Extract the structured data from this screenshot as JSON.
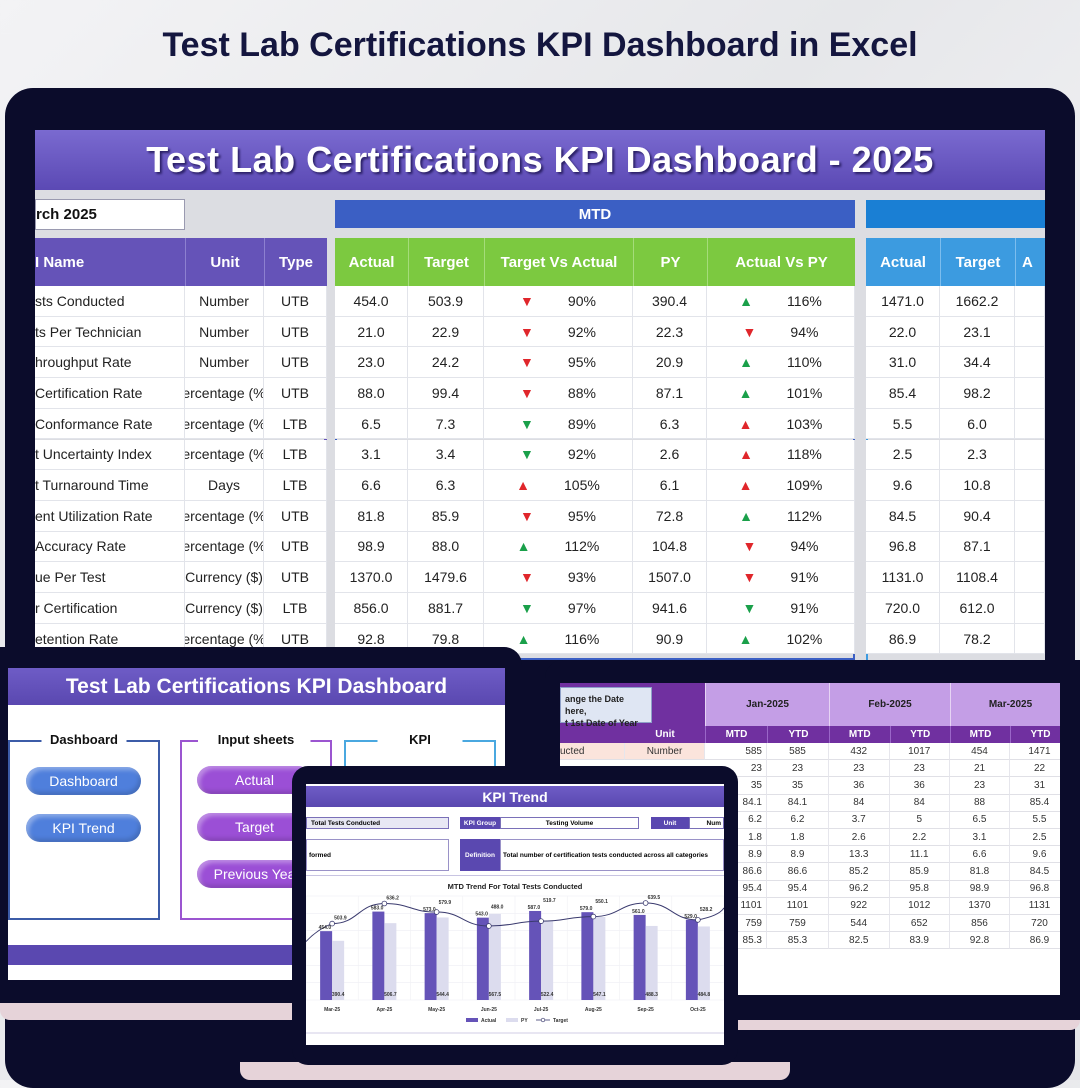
{
  "page_title": "Test Lab Certifications KPI Dashboard in Excel",
  "main": {
    "title": "Test Lab Certifications KPI Dashboard - 2025",
    "month_selector": "rch 2025",
    "mtd_label": "MTD",
    "ytd_label": "",
    "headers": {
      "name": "I Name",
      "unit": "Unit",
      "type": "Type",
      "actual": "Actual",
      "target": "Target",
      "tva": "Target Vs Actual",
      "py": "PY",
      "avpy": "Actual Vs PY",
      "ytd_actual": "Actual",
      "ytd_target": "Target",
      "ytd_cut": "A"
    },
    "colors": {
      "purple": "#6553b8",
      "mtd_band": "#3b5fc4",
      "mtd_head": "#7cc940",
      "ytd_band": "#1a7fd4",
      "ytd_head": "#3c9be0",
      "up": "#1aa04a",
      "down": "#e0262b"
    },
    "rows": [
      {
        "name": "sts Conducted",
        "unit": "Number",
        "type": "UTB",
        "actual": "454.0",
        "target": "503.9",
        "tva_dir": "down",
        "tva_color": "red",
        "tva": "90%",
        "py": "390.4",
        "avpy_dir": "up",
        "avpy_color": "green",
        "avpy": "116%",
        "ytd_actual": "1471.0",
        "ytd_target": "1662.2"
      },
      {
        "name": "ts Per Technician",
        "unit": "Number",
        "type": "UTB",
        "actual": "21.0",
        "target": "22.9",
        "tva_dir": "down",
        "tva_color": "red",
        "tva": "92%",
        "py": "22.3",
        "avpy_dir": "down",
        "avpy_color": "red",
        "avpy": "94%",
        "ytd_actual": "22.0",
        "ytd_target": "23.1"
      },
      {
        "name": "hroughput Rate",
        "unit": "Number",
        "type": "UTB",
        "actual": "23.0",
        "target": "24.2",
        "tva_dir": "down",
        "tva_color": "red",
        "tva": "95%",
        "py": "20.9",
        "avpy_dir": "up",
        "avpy_color": "green",
        "avpy": "110%",
        "ytd_actual": "31.0",
        "ytd_target": "34.4"
      },
      {
        "name": "Certification Rate",
        "unit": "ercentage (%",
        "type": "UTB",
        "actual": "88.0",
        "target": "99.4",
        "tva_dir": "down",
        "tva_color": "red",
        "tva": "88%",
        "py": "87.1",
        "avpy_dir": "up",
        "avpy_color": "green",
        "avpy": "101%",
        "ytd_actual": "85.4",
        "ytd_target": "98.2"
      },
      {
        "name": "Conformance Rate",
        "unit": "ercentage (%",
        "type": "LTB",
        "actual": "6.5",
        "target": "7.3",
        "tva_dir": "down",
        "tva_color": "green",
        "tva": "89%",
        "py": "6.3",
        "avpy_dir": "up",
        "avpy_color": "red",
        "avpy": "103%",
        "ytd_actual": "5.5",
        "ytd_target": "6.0"
      },
      {
        "name": "t Uncertainty Index",
        "unit": "ercentage (%",
        "type": "LTB",
        "actual": "3.1",
        "target": "3.4",
        "tva_dir": "down",
        "tva_color": "green",
        "tva": "92%",
        "py": "2.6",
        "avpy_dir": "up",
        "avpy_color": "red",
        "avpy": "118%",
        "ytd_actual": "2.5",
        "ytd_target": "2.3"
      },
      {
        "name": "t Turnaround Time",
        "unit": "Days",
        "type": "LTB",
        "actual": "6.6",
        "target": "6.3",
        "tva_dir": "up",
        "tva_color": "red",
        "tva": "105%",
        "py": "6.1",
        "avpy_dir": "up",
        "avpy_color": "red",
        "avpy": "109%",
        "ytd_actual": "9.6",
        "ytd_target": "10.8"
      },
      {
        "name": "ent Utilization Rate",
        "unit": "ercentage (%",
        "type": "UTB",
        "actual": "81.8",
        "target": "85.9",
        "tva_dir": "down",
        "tva_color": "red",
        "tva": "95%",
        "py": "72.8",
        "avpy_dir": "up",
        "avpy_color": "green",
        "avpy": "112%",
        "ytd_actual": "84.5",
        "ytd_target": "90.4"
      },
      {
        "name": "Accuracy Rate",
        "unit": "ercentage (%",
        "type": "UTB",
        "actual": "98.9",
        "target": "88.0",
        "tva_dir": "up",
        "tva_color": "green",
        "tva": "112%",
        "py": "104.8",
        "avpy_dir": "down",
        "avpy_color": "red",
        "avpy": "94%",
        "ytd_actual": "96.8",
        "ytd_target": "87.1"
      },
      {
        "name": "ue Per Test",
        "unit": "Currency ($)",
        "type": "UTB",
        "actual": "1370.0",
        "target": "1479.6",
        "tva_dir": "down",
        "tva_color": "red",
        "tva": "93%",
        "py": "1507.0",
        "avpy_dir": "down",
        "avpy_color": "red",
        "avpy": "91%",
        "ytd_actual": "1131.0",
        "ytd_target": "1108.4"
      },
      {
        "name": "r Certification",
        "unit": "Currency ($)",
        "type": "LTB",
        "actual": "856.0",
        "target": "881.7",
        "tva_dir": "down",
        "tva_color": "green",
        "tva": "97%",
        "py": "941.6",
        "avpy_dir": "down",
        "avpy_color": "green",
        "avpy": "91%",
        "ytd_actual": "720.0",
        "ytd_target": "612.0"
      },
      {
        "name": "etention Rate",
        "unit": "ercentage (%",
        "type": "UTB",
        "actual": "92.8",
        "target": "79.8",
        "tva_dir": "up",
        "tva_color": "green",
        "tva": "116%",
        "py": "90.9",
        "avpy_dir": "up",
        "avpy_color": "green",
        "avpy": "102%",
        "ytd_actual": "86.9",
        "ytd_target": "78.2"
      }
    ]
  },
  "home": {
    "title": "Test Lab Certifications KPI Dashboard",
    "groups": [
      {
        "title": "Dashboard",
        "buttons": [
          "Dashboard",
          "KPI Trend"
        ]
      },
      {
        "title": "Input sheets",
        "buttons": [
          "Actual",
          "Target",
          "Previous Yea"
        ]
      },
      {
        "title": "KPI",
        "buttons": []
      }
    ]
  },
  "data_sheet": {
    "callout": [
      "ange the Date here,",
      "t 1st Date of Year"
    ],
    "unit_header": "Unit",
    "months": [
      "Jan-2025",
      "Feb-2025",
      "Mar-2025"
    ],
    "sub_headers": [
      "MTD",
      "YTD"
    ],
    "first_row": {
      "name": "ucted",
      "unit": "Number"
    },
    "rows": [
      [
        "585",
        "585",
        "432",
        "1017",
        "454",
        "1471"
      ],
      [
        "23",
        "23",
        "23",
        "23",
        "21",
        "22"
      ],
      [
        "35",
        "35",
        "36",
        "36",
        "23",
        "31"
      ],
      [
        "84.1",
        "84.1",
        "84",
        "84",
        "88",
        "85.4"
      ],
      [
        "6.2",
        "6.2",
        "3.7",
        "5",
        "6.5",
        "5.5"
      ],
      [
        "1.8",
        "1.8",
        "2.6",
        "2.2",
        "3.1",
        "2.5"
      ],
      [
        "8.9",
        "8.9",
        "13.3",
        "11.1",
        "6.6",
        "9.6"
      ],
      [
        "86.6",
        "86.6",
        "85.2",
        "85.9",
        "81.8",
        "84.5"
      ],
      [
        "95.4",
        "95.4",
        "96.2",
        "95.8",
        "98.9",
        "96.8"
      ],
      [
        "1101",
        "1101",
        "922",
        "1012",
        "1370",
        "1131"
      ],
      [
        "759",
        "759",
        "544",
        "652",
        "856",
        "720"
      ],
      [
        "85.3",
        "85.3",
        "82.5",
        "83.9",
        "92.8",
        "86.9"
      ]
    ]
  },
  "trend": {
    "title": "KPI Trend",
    "kpi_name": "Total Tests Conducted",
    "kpi_group_label": "KPI Group",
    "kpi_group": "Testing Volume",
    "unit_label": "Unit",
    "unit_value": "Num",
    "formula_fragment": "formed",
    "definition_label": "Definition",
    "definition": "Total number of certification tests conducted across all categories"
  },
  "chart_data": {
    "type": "bar",
    "title": "MTD Trend For Total Tests Conducted",
    "categories": [
      "Mar-25",
      "Apr-25",
      "May-25",
      "Jun-25",
      "Jul-25",
      "Aug-25",
      "Sep-25",
      "Oct-25"
    ],
    "series": [
      {
        "name": "Actual",
        "type": "bar",
        "color": "#6553b8",
        "values": [
          454.0,
          583.0,
          573.0,
          543.0,
          587.0,
          579.0,
          561.0,
          529.0
        ]
      },
      {
        "name": "PY",
        "type": "bar",
        "color": "#dcdcee",
        "values": [
          390.4,
          506.7,
          544.4,
          567.5,
          522.4,
          547.1,
          488.3,
          484.8
        ]
      },
      {
        "name": "Target",
        "type": "line",
        "color": "#3a3a6e",
        "values": [
          503.9,
          636.2,
          579.9,
          488.0,
          519.7,
          550.1,
          639.5,
          528.2
        ]
      }
    ],
    "ylim": [
      0,
      720
    ],
    "legend": "bottom"
  }
}
